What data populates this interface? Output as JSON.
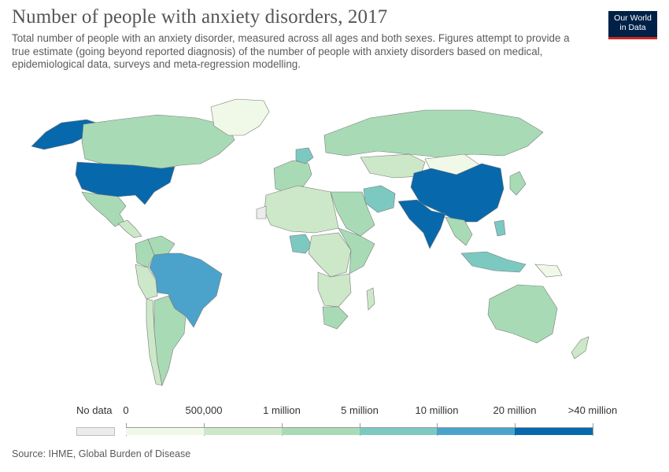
{
  "header": {
    "title": "Number of people with anxiety disorders, 2017",
    "subtitle": "Total number of people with an anxiety disorder, measured across all ages and both sexes. Figures attempt to provide a true estimate (going beyond reported diagnosis) of the number of people with anxiety disorders based on medical, epidemiological data, surveys and meta-regression modelling.",
    "logo_line1": "Our World",
    "logo_line2": "in Data",
    "logo_color": "#002147",
    "logo_accent": "#ce261e"
  },
  "legend": {
    "no_data_label": "No data",
    "no_data_color": "#ececec",
    "breakpoints": [
      "0",
      "500,000",
      "1 million",
      "5 million",
      "10 million",
      "20 million",
      ">40 million"
    ],
    "colors": [
      "#f0f9e8",
      "#cce8c8",
      "#a8dbb5",
      "#7cc9c1",
      "#4ba3cc",
      "#0868ac"
    ]
  },
  "map_data": {
    "regions": [
      {
        "name": "Alaska",
        "bin": 5
      },
      {
        "name": "Canada",
        "bin": 2
      },
      {
        "name": "Greenland",
        "bin": 0
      },
      {
        "name": "United States",
        "bin": 5
      },
      {
        "name": "Mexico",
        "bin": 2
      },
      {
        "name": "Central America",
        "bin": 1
      },
      {
        "name": "Brazil",
        "bin": 4
      },
      {
        "name": "Argentina",
        "bin": 2
      },
      {
        "name": "Colombia",
        "bin": 2
      },
      {
        "name": "Peru",
        "bin": 1
      },
      {
        "name": "Chile",
        "bin": 1
      },
      {
        "name": "Venezuela",
        "bin": 2
      },
      {
        "name": "Western Europe",
        "bin": 2
      },
      {
        "name": "Germany",
        "bin": 3
      },
      {
        "name": "Russia",
        "bin": 2
      },
      {
        "name": "Kazakhstan",
        "bin": 1
      },
      {
        "name": "Mongolia",
        "bin": 0
      },
      {
        "name": "China",
        "bin": 5
      },
      {
        "name": "India",
        "bin": 5
      },
      {
        "name": "Iran",
        "bin": 3
      },
      {
        "name": "Middle East",
        "bin": 2
      },
      {
        "name": "North Africa",
        "bin": 1
      },
      {
        "name": "Western Sahara",
        "bin": -1
      },
      {
        "name": "Nigeria",
        "bin": 3
      },
      {
        "name": "Central Africa",
        "bin": 1
      },
      {
        "name": "East Africa",
        "bin": 2
      },
      {
        "name": "Southern Africa",
        "bin": 1
      },
      {
        "name": "South Africa",
        "bin": 2
      },
      {
        "name": "Madagascar",
        "bin": 1
      },
      {
        "name": "Southeast Asia",
        "bin": 2
      },
      {
        "name": "Indonesia",
        "bin": 3
      },
      {
        "name": "Philippines",
        "bin": 3
      },
      {
        "name": "Japan",
        "bin": 2
      },
      {
        "name": "Australia",
        "bin": 2
      },
      {
        "name": "New Zealand",
        "bin": 1
      },
      {
        "name": "Papua New Guinea",
        "bin": 0
      }
    ]
  },
  "footer": {
    "source": "Source: IHME, Global Burden of Disease"
  }
}
